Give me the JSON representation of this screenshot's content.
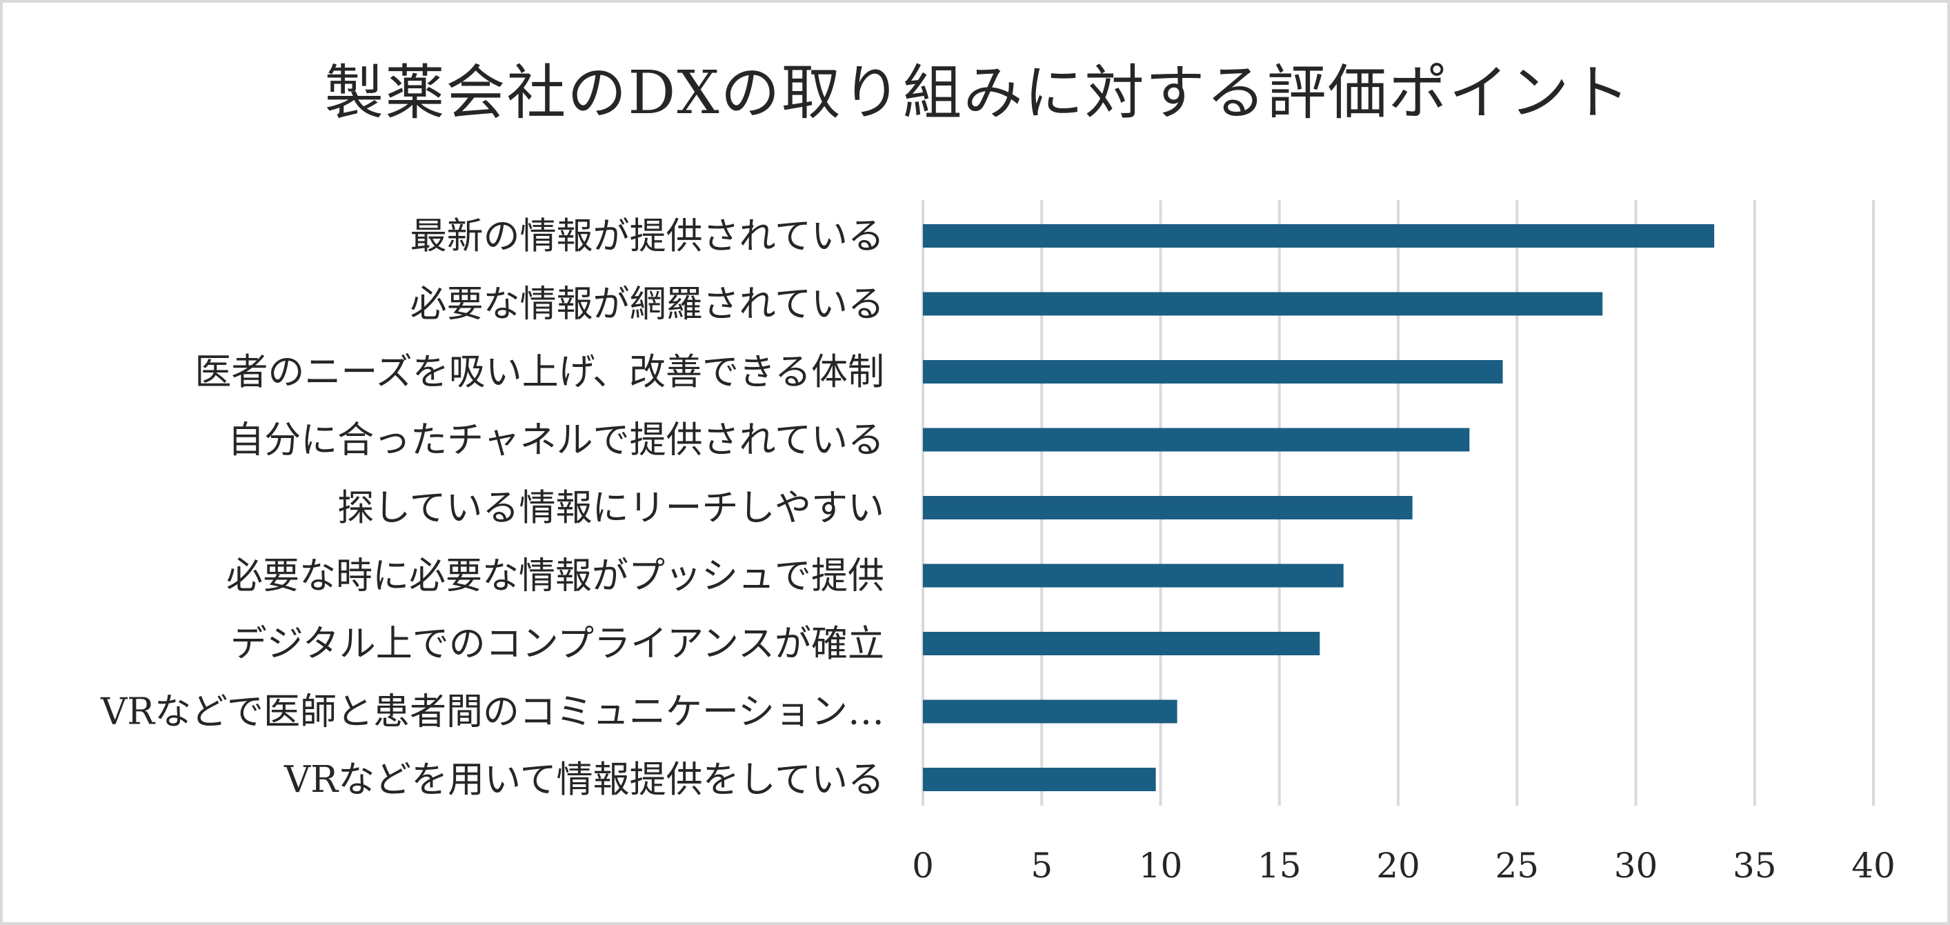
{
  "chart_data": {
    "type": "bar",
    "orientation": "horizontal",
    "title": "製薬会社のDXの取り組みに対する評価ポイント",
    "categories": [
      "最新の情報が提供されている",
      "必要な情報が網羅されている",
      "医者のニーズを吸い上げ、改善できる体制",
      "自分に合ったチャネルで提供されている",
      "探している情報にリーチしやすい",
      "必要な時に必要な情報がプッシュで提供",
      "デジタル上でのコンプライアンスが確立",
      "VRなどで医師と患者間のコミュニケーション…",
      "VRなどを用いて情報提供をしている"
    ],
    "values": [
      33.3,
      28.6,
      24.4,
      23.0,
      20.6,
      17.7,
      16.7,
      10.7,
      9.8
    ],
    "xlim": [
      0,
      40
    ],
    "xticks": [
      "0",
      "5",
      "10",
      "15",
      "20",
      "25",
      "30",
      "35",
      "40"
    ],
    "grid": "vertical",
    "legend": "none",
    "bar_color": "#1a5e83",
    "grid_color": "#d9d9d9"
  }
}
